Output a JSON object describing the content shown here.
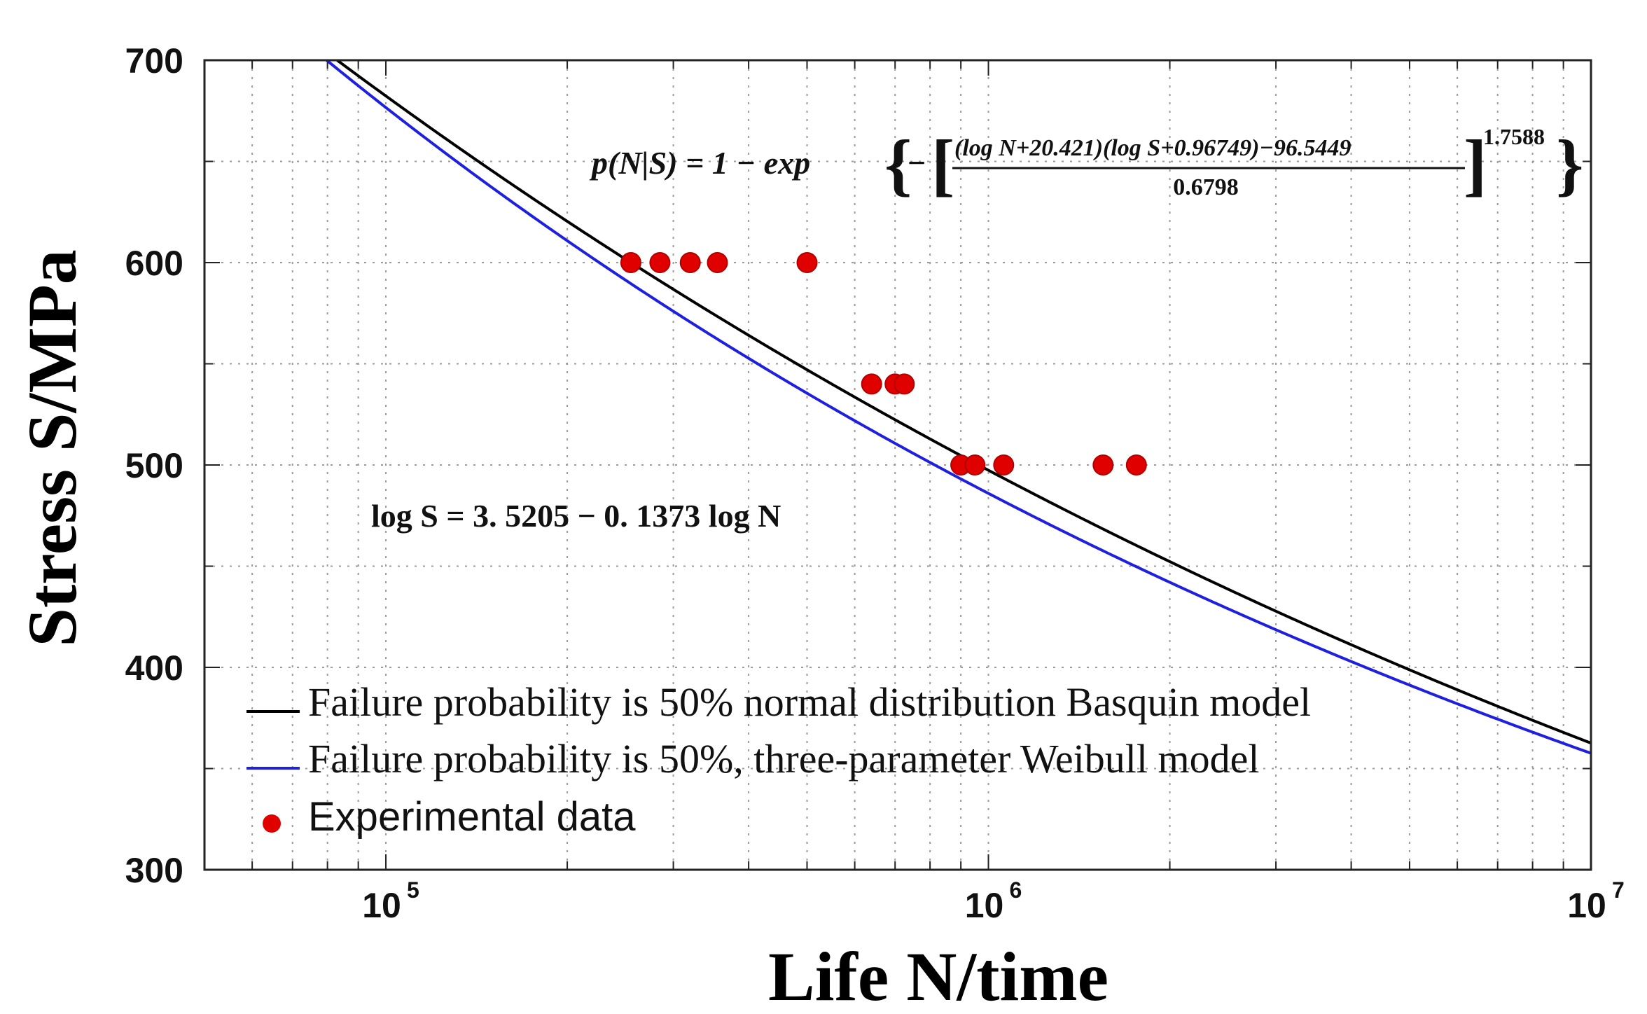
{
  "chart_data": {
    "type": "scatter",
    "title": "",
    "xlabel": "Life N/time",
    "ylabel": "Stress S/MPa",
    "x_scale": "log",
    "xlim": [
      50000,
      10000000
    ],
    "ylim": [
      300,
      700
    ],
    "grid": true,
    "x_tick_labels": [
      {
        "value": 100000,
        "base": "10",
        "exp": "5"
      },
      {
        "value": 1000000,
        "base": "10",
        "exp": "6"
      },
      {
        "value": 10000000,
        "base": "10",
        "exp": "7"
      }
    ],
    "y_ticks": [
      300,
      400,
      500,
      600,
      700
    ],
    "legend_position": "bottom-left",
    "series": [
      {
        "name": "Failure probability is 50% normal distribution Basquin model",
        "kind": "line",
        "color": "#000000",
        "model": {
          "a": 3.5205,
          "b": -0.1373
        }
      },
      {
        "name": "Failure probability is 50%, three-parameter Weibull model",
        "kind": "line",
        "color": "#1f1fe0",
        "model": {
          "c1": 20.421,
          "c2": 0.96749,
          "c3": 96.5449
        }
      },
      {
        "name": "Experimental data",
        "kind": "scatter",
        "color": "#e00000",
        "points": [
          {
            "x": 255000,
            "y": 600
          },
          {
            "x": 285000,
            "y": 600
          },
          {
            "x": 320000,
            "y": 600
          },
          {
            "x": 355000,
            "y": 600
          },
          {
            "x": 500000,
            "y": 600
          },
          {
            "x": 640000,
            "y": 540
          },
          {
            "x": 700000,
            "y": 540
          },
          {
            "x": 725000,
            "y": 540
          },
          {
            "x": 900000,
            "y": 500
          },
          {
            "x": 950000,
            "y": 500
          },
          {
            "x": 1060000,
            "y": 500
          },
          {
            "x": 1550000,
            "y": 500
          },
          {
            "x": 1760000,
            "y": 500
          }
        ]
      }
    ],
    "annotations": {
      "weibull_eq": {
        "lhs": "p(N|S) = 1 − exp",
        "numerator": "(log N+20.421)(log S+0.96749)−96.5449",
        "denominator": "0.6798",
        "exponent": "1.7588",
        "minus": "−"
      },
      "basquin_eq": "log S = 3. 5205 − 0. 1373 log N"
    }
  }
}
